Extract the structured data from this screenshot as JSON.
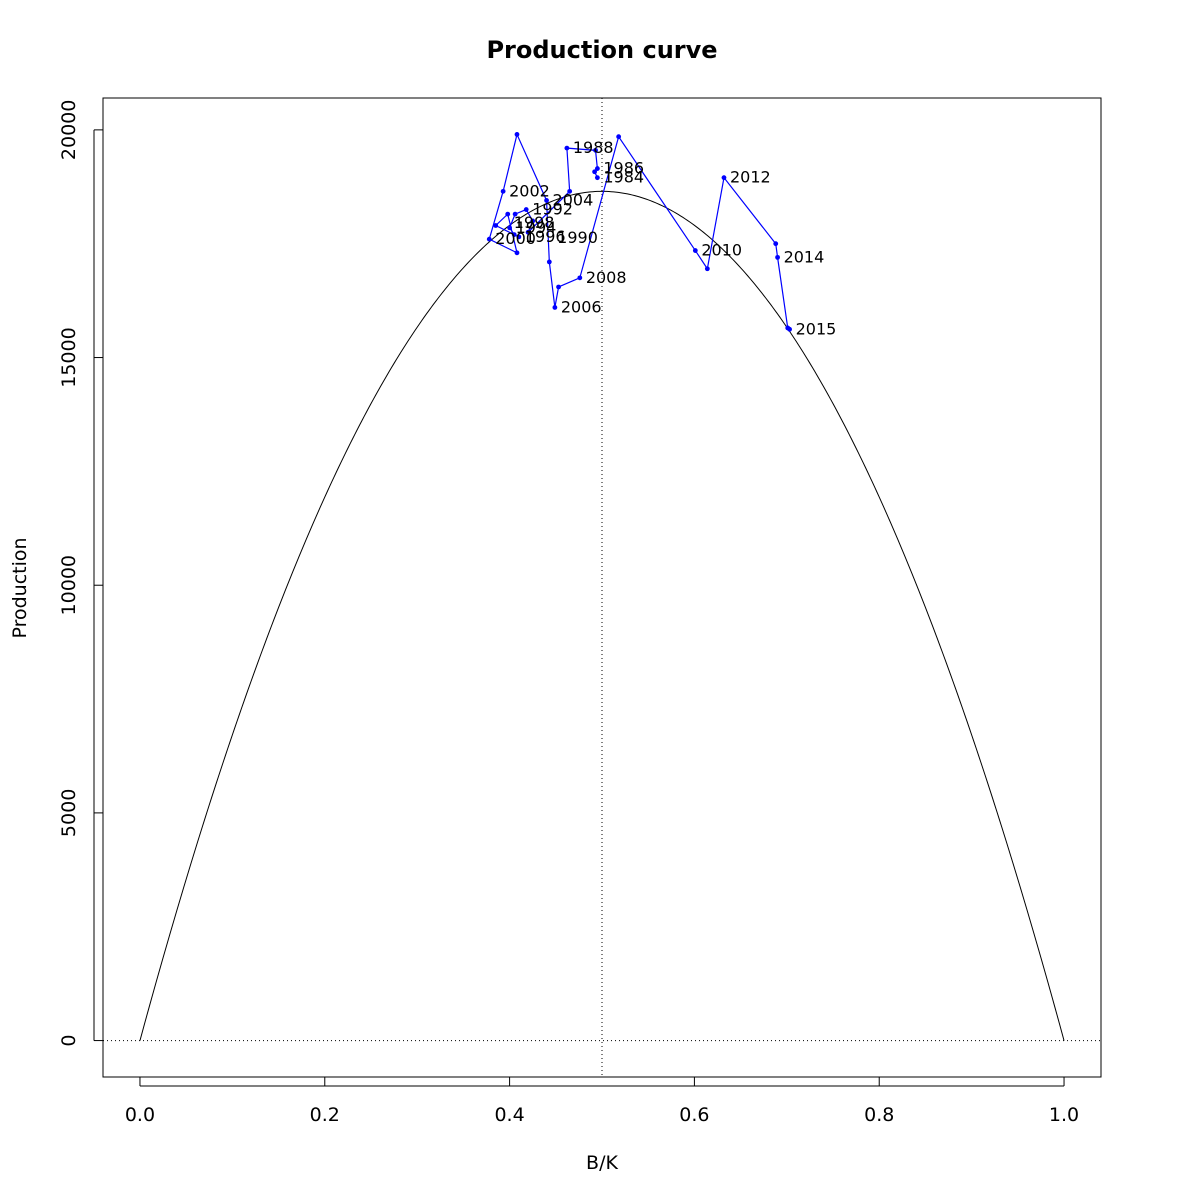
{
  "chart_data": {
    "type": "line",
    "title": "Production curve",
    "xlabel": "B/K",
    "ylabel": "Production",
    "xlim": [
      -0.04,
      1.04
    ],
    "ylim": [
      -800,
      20700
    ],
    "x_ticks": [
      "0.0",
      "0.2",
      "0.4",
      "0.6",
      "0.8",
      "1.0"
    ],
    "y_ticks": [
      "0",
      "5000",
      "10000",
      "15000",
      "20000"
    ],
    "grid": false,
    "curve": {
      "name": "",
      "color": "#000000",
      "bmsy_ratio": 0.5,
      "msy": 18650
    },
    "reference_lines": {
      "vertical_x": 0.5,
      "horizontal_y": 0
    },
    "series": [
      {
        "name": "",
        "color": "#0000ff",
        "points": [
          {
            "x": 0.495,
            "y": 18950,
            "label": "1984"
          },
          {
            "x": 0.492,
            "y": 19080,
            "label": ""
          },
          {
            "x": 0.495,
            "y": 19150,
            "label": "1986"
          },
          {
            "x": 0.493,
            "y": 19550,
            "label": ""
          },
          {
            "x": 0.462,
            "y": 19600,
            "label": "1988"
          },
          {
            "x": 0.465,
            "y": 18650,
            "label": ""
          },
          {
            "x": 0.42,
            "y": 17750,
            "label": "1990"
          },
          {
            "x": 0.425,
            "y": 18000,
            "label": ""
          },
          {
            "x": 0.418,
            "y": 18250,
            "label": "1992"
          },
          {
            "x": 0.406,
            "y": 18150,
            "label": ""
          },
          {
            "x": 0.4,
            "y": 17850,
            "label": "1994"
          },
          {
            "x": 0.405,
            "y": 17700,
            "label": ""
          },
          {
            "x": 0.41,
            "y": 17650,
            "label": "1996"
          },
          {
            "x": 0.385,
            "y": 17900,
            "label": ""
          },
          {
            "x": 0.398,
            "y": 18150,
            "label": "1998"
          },
          {
            "x": 0.408,
            "y": 17300,
            "label": ""
          },
          {
            "x": 0.378,
            "y": 17600,
            "label": "2000"
          },
          {
            "x": 0.393,
            "y": 18650,
            "label": ""
          },
          {
            "x": 0.408,
            "y": 19900,
            "label": "2002"
          },
          {
            "x": 0.44,
            "y": 18450,
            "label": ""
          },
          {
            "x": 0.443,
            "y": 17100,
            "label": "2004"
          },
          {
            "x": 0.449,
            "y": 16100,
            "label": ""
          },
          {
            "x": 0.453,
            "y": 16550,
            "label": "2006"
          },
          {
            "x": 0.476,
            "y": 16750,
            "label": ""
          },
          {
            "x": 0.518,
            "y": 19850,
            "label": "2008"
          },
          {
            "x": 0.601,
            "y": 17350,
            "label": ""
          },
          {
            "x": 0.614,
            "y": 16950,
            "label": "2010"
          },
          {
            "x": 0.632,
            "y": 18950,
            "label": ""
          },
          {
            "x": 0.688,
            "y": 17500,
            "label": "2012"
          },
          {
            "x": 0.69,
            "y": 17200,
            "label": ""
          },
          {
            "x": 0.701,
            "y": 15650,
            "label": "2014"
          },
          {
            "x": 0.703,
            "y": 15620,
            "label": "2015"
          }
        ]
      }
    ],
    "labels": [
      {
        "text": "1984",
        "x": 0.495,
        "y": 18950
      },
      {
        "text": "1986",
        "x": 0.495,
        "y": 19150
      },
      {
        "text": "1988",
        "x": 0.462,
        "y": 19600
      },
      {
        "text": "1990",
        "x": 0.445,
        "y": 17620
      },
      {
        "text": "1992",
        "x": 0.418,
        "y": 18250
      },
      {
        "text": "1994",
        "x": 0.4,
        "y": 17850
      },
      {
        "text": "1996",
        "x": 0.41,
        "y": 17650
      },
      {
        "text": "1998",
        "x": 0.398,
        "y": 17950
      },
      {
        "text": "2000",
        "x": 0.378,
        "y": 17600
      },
      {
        "text": "2002",
        "x": 0.393,
        "y": 18650
      },
      {
        "text": "2004",
        "x": 0.44,
        "y": 18450
      },
      {
        "text": "2006",
        "x": 0.449,
        "y": 16100
      },
      {
        "text": "2008",
        "x": 0.476,
        "y": 16750
      },
      {
        "text": "2010",
        "x": 0.601,
        "y": 17350
      },
      {
        "text": "2012",
        "x": 0.632,
        "y": 18950
      },
      {
        "text": "2014",
        "x": 0.69,
        "y": 17200
      },
      {
        "text": "2015",
        "x": 0.703,
        "y": 15620
      }
    ]
  }
}
